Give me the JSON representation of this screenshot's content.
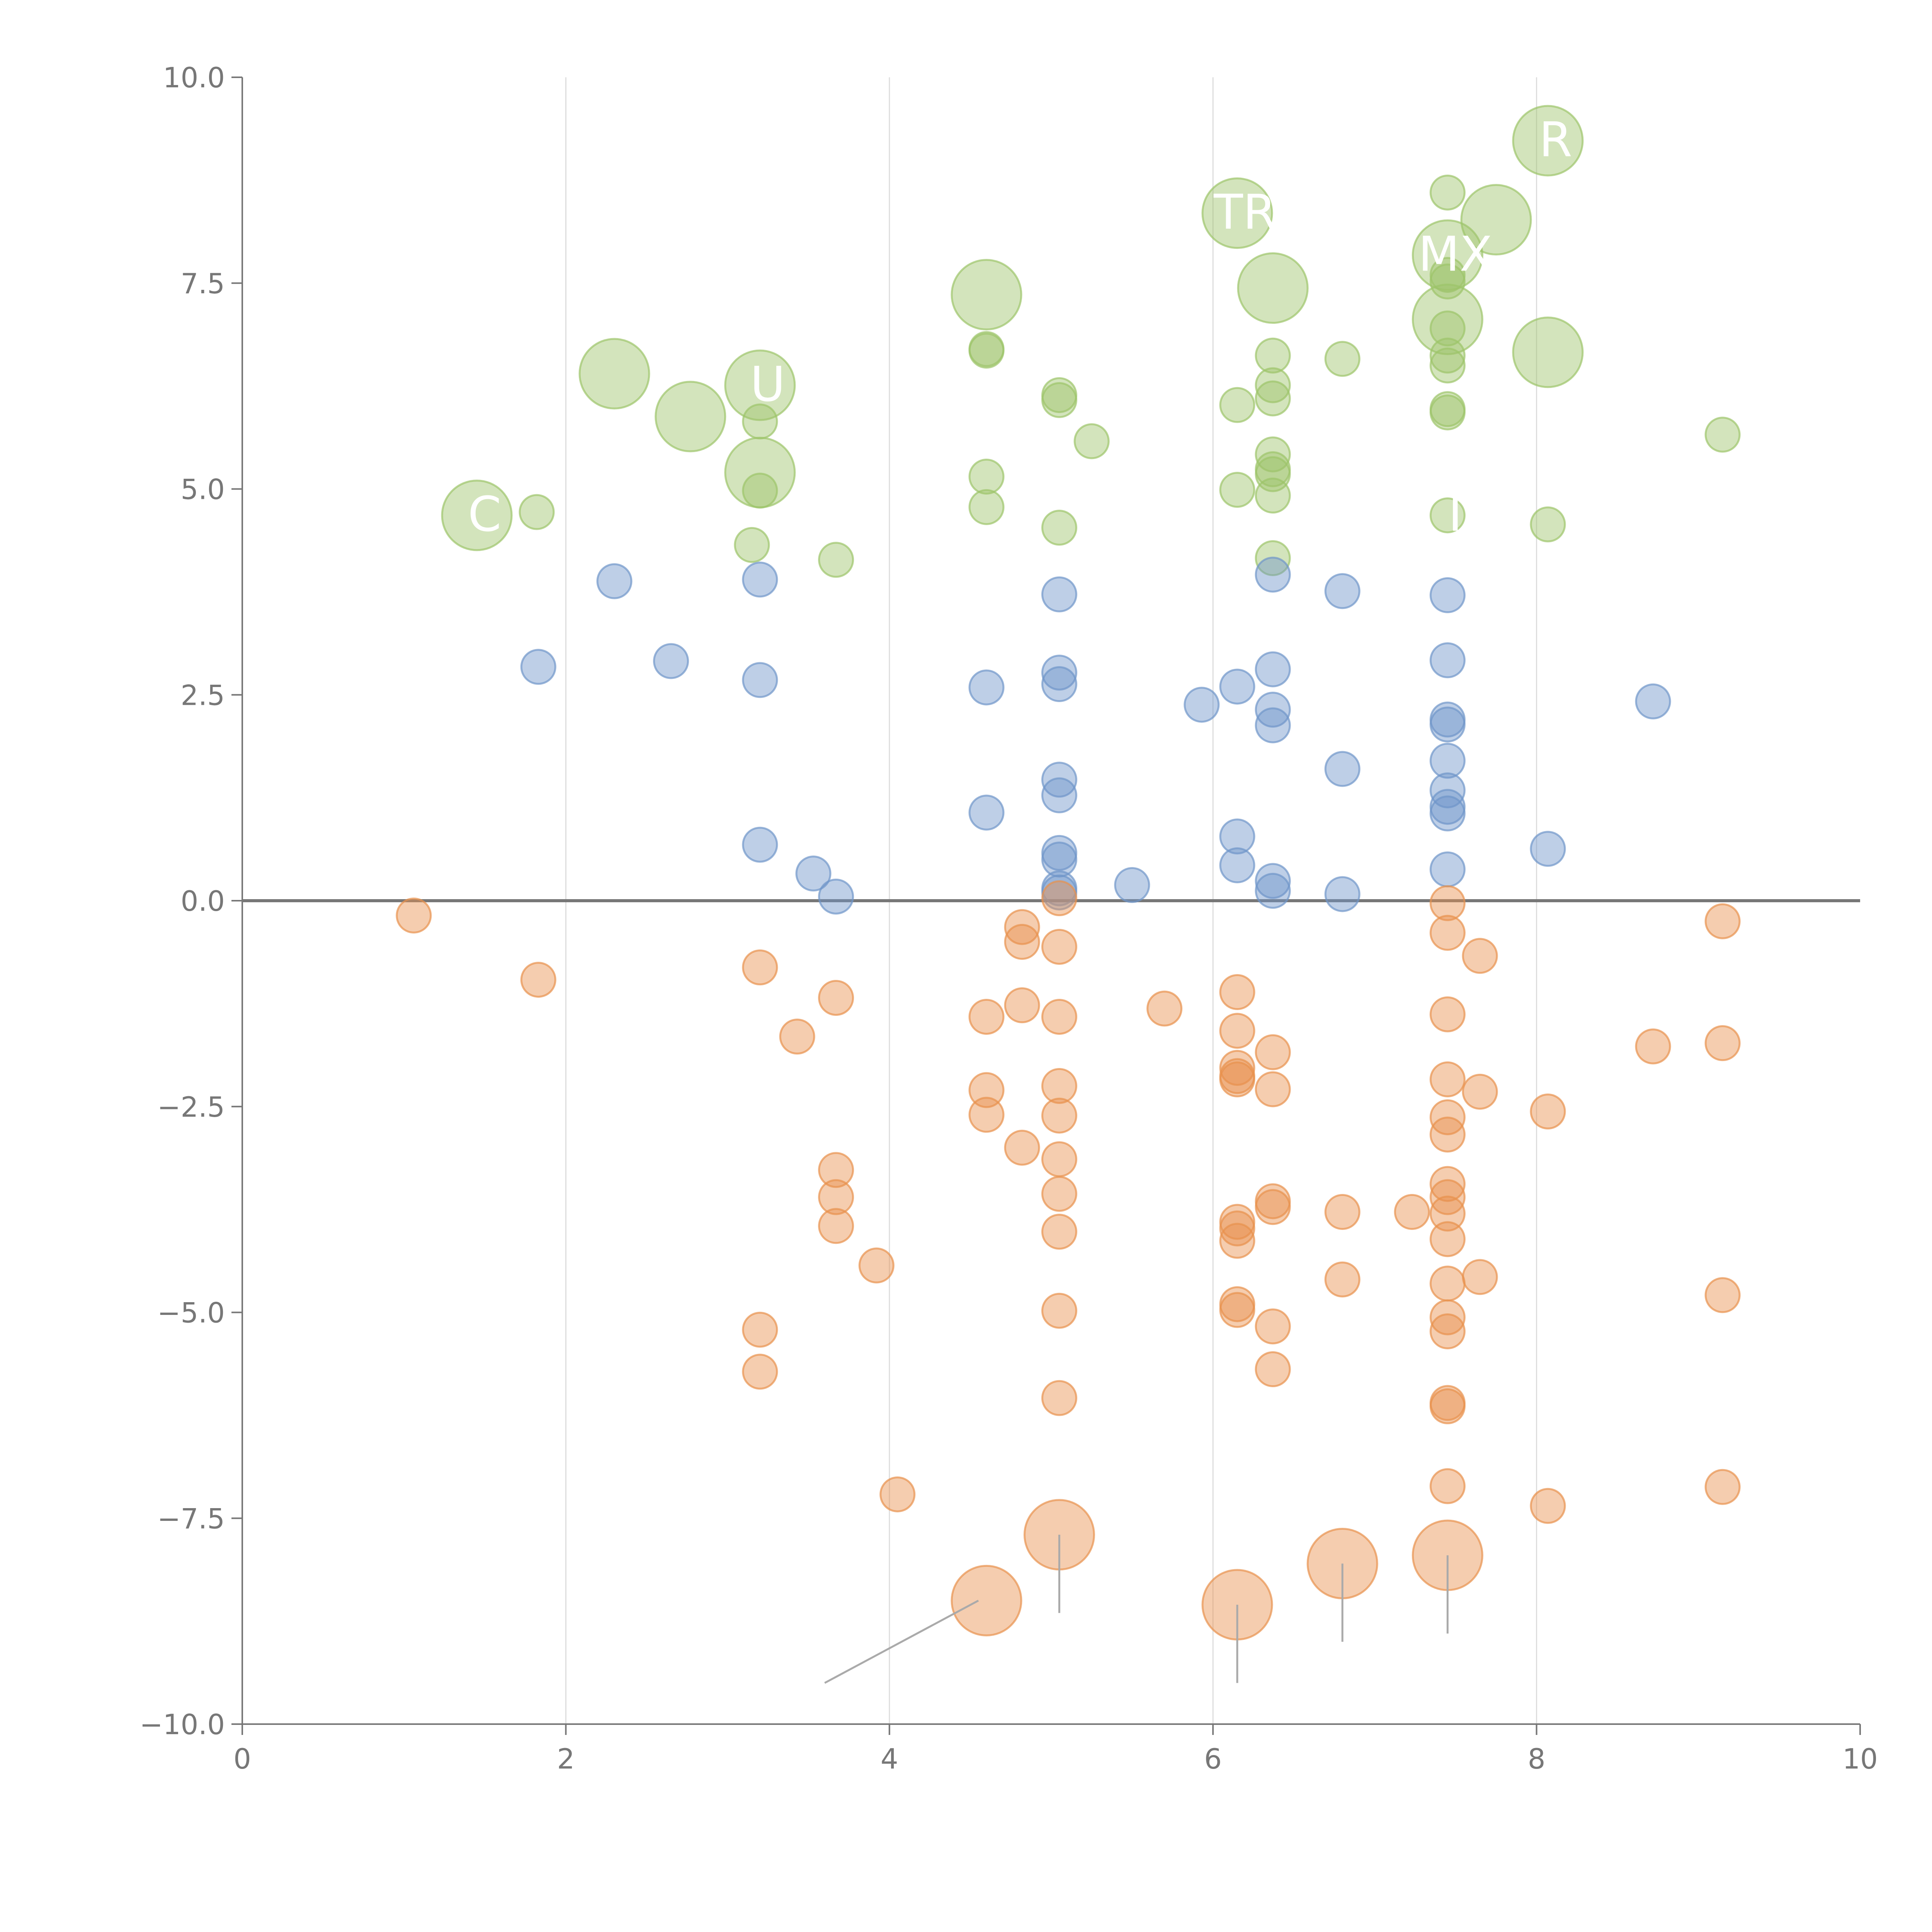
{
  "chart_data": {
    "type": "scatter",
    "title": "",
    "xlabel": "",
    "ylabel": "",
    "xlim": [
      0,
      10
    ],
    "ylim": [
      -10,
      10
    ],
    "grid": "vertical lines at even x ticks",
    "baseline_y": 0,
    "x_ticks": [
      "0",
      "2",
      "4",
      "6",
      "8",
      "10"
    ],
    "y_ticks": [
      "10.0",
      "7.5",
      "5.0",
      "2.5",
      "0.0",
      "−2.5",
      "−5.0",
      "−7.5",
      "−10.0"
    ],
    "colors": {
      "green": "#9dc46a",
      "blue": "#6f95c9",
      "orange": "#e8914d",
      "axis": "#777777",
      "grid": "#dddddd",
      "zero": "#777777",
      "leader": "#aaaaaa"
    },
    "series": [
      {
        "name": "green",
        "color": "#9dc46a",
        "points": [
          {
            "x": 1.45,
            "y": 4.68,
            "size": "large"
          },
          {
            "x": 1.82,
            "y": 4.72,
            "size": "small"
          },
          {
            "x": 2.3,
            "y": 6.4,
            "size": "large"
          },
          {
            "x": 2.77,
            "y": 5.88,
            "size": "large"
          },
          {
            "x": 3.2,
            "y": 6.26,
            "size": "large"
          },
          {
            "x": 3.2,
            "y": 5.82,
            "size": "small"
          },
          {
            "x": 3.2,
            "y": 5.2,
            "size": "large"
          },
          {
            "x": 3.2,
            "y": 4.98,
            "size": "small"
          },
          {
            "x": 3.15,
            "y": 4.32,
            "size": "small"
          },
          {
            "x": 3.67,
            "y": 4.14,
            "size": "small"
          },
          {
            "x": 4.6,
            "y": 7.36,
            "size": "large"
          },
          {
            "x": 4.6,
            "y": 6.7,
            "size": "small"
          },
          {
            "x": 4.6,
            "y": 6.68,
            "size": "small"
          },
          {
            "x": 4.6,
            "y": 5.15,
            "size": "small"
          },
          {
            "x": 4.6,
            "y": 4.78,
            "size": "small"
          },
          {
            "x": 5.05,
            "y": 6.14,
            "size": "small"
          },
          {
            "x": 5.05,
            "y": 6.08,
            "size": "small"
          },
          {
            "x": 5.25,
            "y": 5.58,
            "size": "small"
          },
          {
            "x": 5.05,
            "y": 4.53,
            "size": "small"
          },
          {
            "x": 6.15,
            "y": 8.35,
            "size": "large"
          },
          {
            "x": 6.37,
            "y": 7.44,
            "size": "large"
          },
          {
            "x": 6.15,
            "y": 6.02,
            "size": "small"
          },
          {
            "x": 6.37,
            "y": 6.62,
            "size": "small"
          },
          {
            "x": 6.37,
            "y": 6.26,
            "size": "small"
          },
          {
            "x": 6.37,
            "y": 6.1,
            "size": "small"
          },
          {
            "x": 6.37,
            "y": 5.42,
            "size": "small"
          },
          {
            "x": 6.37,
            "y": 5.24,
            "size": "small"
          },
          {
            "x": 6.37,
            "y": 5.18,
            "size": "small"
          },
          {
            "x": 6.15,
            "y": 4.99,
            "size": "small"
          },
          {
            "x": 6.37,
            "y": 4.92,
            "size": "small"
          },
          {
            "x": 6.37,
            "y": 4.16,
            "size": "small"
          },
          {
            "x": 6.8,
            "y": 6.58,
            "size": "small"
          },
          {
            "x": 7.45,
            "y": 8.6,
            "size": "small"
          },
          {
            "x": 7.45,
            "y": 7.84,
            "size": "large"
          },
          {
            "x": 7.45,
            "y": 7.6,
            "size": "small"
          },
          {
            "x": 7.45,
            "y": 7.52,
            "size": "small"
          },
          {
            "x": 7.45,
            "y": 7.06,
            "size": "large"
          },
          {
            "x": 7.45,
            "y": 6.95,
            "size": "small"
          },
          {
            "x": 7.45,
            "y": 6.62,
            "size": "small"
          },
          {
            "x": 7.45,
            "y": 6.5,
            "size": "small"
          },
          {
            "x": 7.45,
            "y": 5.97,
            "size": "small"
          },
          {
            "x": 7.45,
            "y": 5.93,
            "size": "small"
          },
          {
            "x": 7.45,
            "y": 4.68,
            "size": "small"
          },
          {
            "x": 7.75,
            "y": 8.27,
            "size": "large"
          },
          {
            "x": 8.07,
            "y": 9.23,
            "size": "large"
          },
          {
            "x": 8.07,
            "y": 6.66,
            "size": "large"
          },
          {
            "x": 8.07,
            "y": 4.57,
            "size": "small"
          },
          {
            "x": 9.15,
            "y": 5.66,
            "size": "small"
          }
        ]
      },
      {
        "name": "blue",
        "color": "#6f95c9",
        "points": [
          {
            "x": 1.83,
            "y": 2.84,
            "size": "small"
          },
          {
            "x": 2.3,
            "y": 3.88,
            "size": "small"
          },
          {
            "x": 2.65,
            "y": 2.91,
            "size": "small"
          },
          {
            "x": 3.2,
            "y": 3.9,
            "size": "small"
          },
          {
            "x": 3.2,
            "y": 2.68,
            "size": "small"
          },
          {
            "x": 3.2,
            "y": 0.68,
            "size": "small"
          },
          {
            "x": 3.53,
            "y": 0.33,
            "size": "small"
          },
          {
            "x": 3.67,
            "y": 0.05,
            "size": "small"
          },
          {
            "x": 4.6,
            "y": 2.59,
            "size": "small"
          },
          {
            "x": 4.6,
            "y": 1.07,
            "size": "small"
          },
          {
            "x": 5.05,
            "y": 3.72,
            "size": "small"
          },
          {
            "x": 5.05,
            "y": 2.77,
            "size": "small"
          },
          {
            "x": 5.05,
            "y": 2.63,
            "size": "small"
          },
          {
            "x": 5.05,
            "y": 1.47,
            "size": "small"
          },
          {
            "x": 5.05,
            "y": 1.28,
            "size": "small"
          },
          {
            "x": 5.05,
            "y": 0.58,
            "size": "small"
          },
          {
            "x": 5.05,
            "y": 0.5,
            "size": "small"
          },
          {
            "x": 5.05,
            "y": 0.15,
            "size": "small"
          },
          {
            "x": 5.05,
            "y": 0.1,
            "size": "small"
          },
          {
            "x": 5.5,
            "y": 0.19,
            "size": "small"
          },
          {
            "x": 5.93,
            "y": 2.38,
            "size": "small"
          },
          {
            "x": 6.15,
            "y": 2.6,
            "size": "small"
          },
          {
            "x": 6.15,
            "y": 0.78,
            "size": "small"
          },
          {
            "x": 6.15,
            "y": 0.43,
            "size": "small"
          },
          {
            "x": 6.37,
            "y": 3.96,
            "size": "small"
          },
          {
            "x": 6.37,
            "y": 2.81,
            "size": "small"
          },
          {
            "x": 6.37,
            "y": 2.32,
            "size": "small"
          },
          {
            "x": 6.37,
            "y": 2.13,
            "size": "small"
          },
          {
            "x": 6.37,
            "y": 0.24,
            "size": "small"
          },
          {
            "x": 6.37,
            "y": 0.12,
            "size": "small"
          },
          {
            "x": 6.8,
            "y": 3.76,
            "size": "small"
          },
          {
            "x": 6.8,
            "y": 1.6,
            "size": "small"
          },
          {
            "x": 6.8,
            "y": 0.08,
            "size": "small"
          },
          {
            "x": 7.45,
            "y": 3.71,
            "size": "small"
          },
          {
            "x": 7.45,
            "y": 2.92,
            "size": "small"
          },
          {
            "x": 7.45,
            "y": 2.2,
            "size": "small"
          },
          {
            "x": 7.45,
            "y": 2.14,
            "size": "small"
          },
          {
            "x": 7.45,
            "y": 1.7,
            "size": "small"
          },
          {
            "x": 7.45,
            "y": 1.34,
            "size": "small"
          },
          {
            "x": 7.45,
            "y": 1.14,
            "size": "small"
          },
          {
            "x": 7.45,
            "y": 1.06,
            "size": "small"
          },
          {
            "x": 7.45,
            "y": 0.38,
            "size": "small"
          },
          {
            "x": 8.07,
            "y": 0.63,
            "size": "small"
          },
          {
            "x": 8.72,
            "y": 2.42,
            "size": "small"
          }
        ]
      },
      {
        "name": "orange",
        "color": "#e8914d",
        "points": [
          {
            "x": 1.06,
            "y": -0.18,
            "size": "small"
          },
          {
            "x": 1.83,
            "y": -0.96,
            "size": "small"
          },
          {
            "x": 3.2,
            "y": -0.81,
            "size": "small"
          },
          {
            "x": 3.43,
            "y": -1.65,
            "size": "small"
          },
          {
            "x": 3.67,
            "y": -1.18,
            "size": "small"
          },
          {
            "x": 3.67,
            "y": -3.27,
            "size": "small"
          },
          {
            "x": 3.67,
            "y": -3.6,
            "size": "small"
          },
          {
            "x": 3.67,
            "y": -3.95,
            "size": "small"
          },
          {
            "x": 3.92,
            "y": -4.43,
            "size": "small"
          },
          {
            "x": 3.2,
            "y": -5.21,
            "size": "small"
          },
          {
            "x": 3.2,
            "y": -5.72,
            "size": "small"
          },
          {
            "x": 4.05,
            "y": -7.21,
            "size": "small"
          },
          {
            "x": 4.6,
            "y": -1.41,
            "size": "small"
          },
          {
            "x": 4.6,
            "y": -2.3,
            "size": "small"
          },
          {
            "x": 4.6,
            "y": -2.6,
            "size": "small"
          },
          {
            "x": 4.6,
            "y": -8.5,
            "size": "large"
          },
          {
            "x": 4.82,
            "y": -0.32,
            "size": "small"
          },
          {
            "x": 4.82,
            "y": -0.5,
            "size": "small"
          },
          {
            "x": 4.82,
            "y": -1.27,
            "size": "small"
          },
          {
            "x": 4.82,
            "y": -3.0,
            "size": "small"
          },
          {
            "x": 5.05,
            "y": 0.03,
            "size": "small"
          },
          {
            "x": 5.05,
            "y": -0.56,
            "size": "small"
          },
          {
            "x": 5.05,
            "y": -1.41,
            "size": "small"
          },
          {
            "x": 5.05,
            "y": -2.25,
            "size": "small"
          },
          {
            "x": 5.05,
            "y": -2.61,
            "size": "small"
          },
          {
            "x": 5.05,
            "y": -3.14,
            "size": "small"
          },
          {
            "x": 5.05,
            "y": -3.56,
            "size": "small"
          },
          {
            "x": 5.05,
            "y": -4.02,
            "size": "small"
          },
          {
            "x": 5.05,
            "y": -4.98,
            "size": "small"
          },
          {
            "x": 5.05,
            "y": -6.04,
            "size": "small"
          },
          {
            "x": 5.05,
            "y": -7.7,
            "size": "large"
          },
          {
            "x": 5.7,
            "y": -1.31,
            "size": "small"
          },
          {
            "x": 6.15,
            "y": -1.11,
            "size": "small"
          },
          {
            "x": 6.15,
            "y": -1.58,
            "size": "small"
          },
          {
            "x": 6.15,
            "y": -2.03,
            "size": "small"
          },
          {
            "x": 6.15,
            "y": -2.13,
            "size": "small"
          },
          {
            "x": 6.15,
            "y": -2.17,
            "size": "small"
          },
          {
            "x": 6.15,
            "y": -3.9,
            "size": "small"
          },
          {
            "x": 6.15,
            "y": -3.98,
            "size": "small"
          },
          {
            "x": 6.15,
            "y": -4.13,
            "size": "small"
          },
          {
            "x": 6.15,
            "y": -4.9,
            "size": "small"
          },
          {
            "x": 6.15,
            "y": -4.97,
            "size": "small"
          },
          {
            "x": 6.15,
            "y": -8.55,
            "size": "large"
          },
          {
            "x": 6.37,
            "y": -1.84,
            "size": "small"
          },
          {
            "x": 6.37,
            "y": -2.29,
            "size": "small"
          },
          {
            "x": 6.37,
            "y": -3.65,
            "size": "small"
          },
          {
            "x": 6.37,
            "y": -3.72,
            "size": "small"
          },
          {
            "x": 6.37,
            "y": -5.17,
            "size": "small"
          },
          {
            "x": 6.37,
            "y": -5.69,
            "size": "small"
          },
          {
            "x": 6.8,
            "y": -3.78,
            "size": "small"
          },
          {
            "x": 6.8,
            "y": -4.6,
            "size": "small"
          },
          {
            "x": 6.8,
            "y": -8.05,
            "size": "large"
          },
          {
            "x": 7.23,
            "y": -3.78,
            "size": "small"
          },
          {
            "x": 7.45,
            "y": -0.03,
            "size": "small"
          },
          {
            "x": 7.45,
            "y": -0.39,
            "size": "small"
          },
          {
            "x": 7.45,
            "y": -1.38,
            "size": "small"
          },
          {
            "x": 7.45,
            "y": -2.17,
            "size": "small"
          },
          {
            "x": 7.45,
            "y": -2.63,
            "size": "small"
          },
          {
            "x": 7.45,
            "y": -2.84,
            "size": "small"
          },
          {
            "x": 7.45,
            "y": -3.44,
            "size": "small"
          },
          {
            "x": 7.45,
            "y": -3.6,
            "size": "small"
          },
          {
            "x": 7.45,
            "y": -3.8,
            "size": "small"
          },
          {
            "x": 7.45,
            "y": -4.11,
            "size": "small"
          },
          {
            "x": 7.45,
            "y": -4.65,
            "size": "small"
          },
          {
            "x": 7.45,
            "y": -5.06,
            "size": "small"
          },
          {
            "x": 7.45,
            "y": -5.23,
            "size": "small"
          },
          {
            "x": 7.45,
            "y": -6.1,
            "size": "small"
          },
          {
            "x": 7.45,
            "y": -6.14,
            "size": "small"
          },
          {
            "x": 7.45,
            "y": -7.11,
            "size": "small"
          },
          {
            "x": 7.45,
            "y": -7.95,
            "size": "large"
          },
          {
            "x": 7.65,
            "y": -0.67,
            "size": "small"
          },
          {
            "x": 7.65,
            "y": -2.32,
            "size": "small"
          },
          {
            "x": 7.65,
            "y": -4.57,
            "size": "small"
          },
          {
            "x": 8.07,
            "y": -2.56,
            "size": "small"
          },
          {
            "x": 8.07,
            "y": -7.35,
            "size": "small"
          },
          {
            "x": 8.72,
            "y": -1.77,
            "size": "small"
          },
          {
            "x": 9.15,
            "y": -0.25,
            "size": "small"
          },
          {
            "x": 9.15,
            "y": -1.73,
            "size": "small"
          },
          {
            "x": 9.15,
            "y": -4.79,
            "size": "small"
          },
          {
            "x": 9.15,
            "y": -7.12,
            "size": "small"
          }
        ]
      }
    ],
    "annotations": [
      {
        "text": "R",
        "x": 8.07,
        "y": 9.23
      },
      {
        "text": "TR",
        "x": 6.15,
        "y": 8.35
      },
      {
        "text": "MX",
        "x": 7.45,
        "y": 7.84
      },
      {
        "text": "U",
        "x": 3.2,
        "y": 6.26
      },
      {
        "text": "C",
        "x": 1.45,
        "y": 4.68
      },
      {
        "text": "I",
        "x": 7.45,
        "y": 4.68
      }
    ],
    "leader_lines": [
      {
        "x1": 4.55,
        "y1": -8.5,
        "x2": 3.6,
        "y2": -9.5
      },
      {
        "x1": 5.05,
        "y1": -7.7,
        "x2": 5.05,
        "y2": -8.65
      },
      {
        "x1": 6.15,
        "y1": -8.55,
        "x2": 6.15,
        "y2": -9.5
      },
      {
        "x1": 6.8,
        "y1": -8.05,
        "x2": 6.8,
        "y2": -9.0
      },
      {
        "x1": 7.45,
        "y1": -7.95,
        "x2": 7.45,
        "y2": -8.9
      }
    ]
  }
}
